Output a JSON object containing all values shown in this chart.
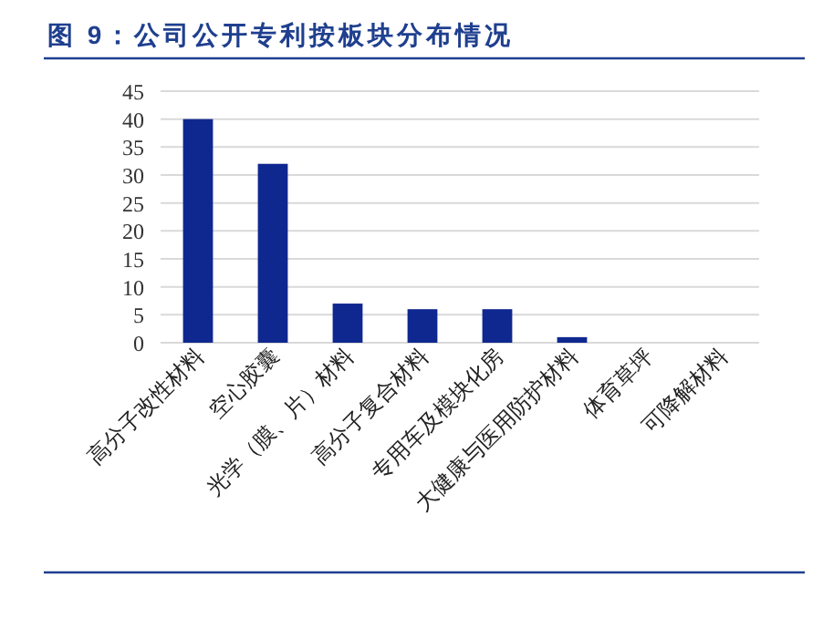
{
  "chart_data": {
    "type": "bar",
    "title": "图 9：公司公开专利按板块分布情况",
    "categories": [
      "高分子改性材料",
      "空心胶囊",
      "光学（膜、片）材料",
      "高分子复合材料",
      "专用车及模块化房",
      "大健康与医用防护材料",
      "体育草坪",
      "可降解材料"
    ],
    "values": [
      40,
      32,
      7,
      6,
      6,
      1,
      0,
      0
    ],
    "color": "#0f2890",
    "ylim": [
      0,
      45
    ],
    "yticks": [
      0,
      5,
      10,
      15,
      20,
      25,
      30,
      35,
      40,
      45
    ],
    "grid": "y"
  }
}
